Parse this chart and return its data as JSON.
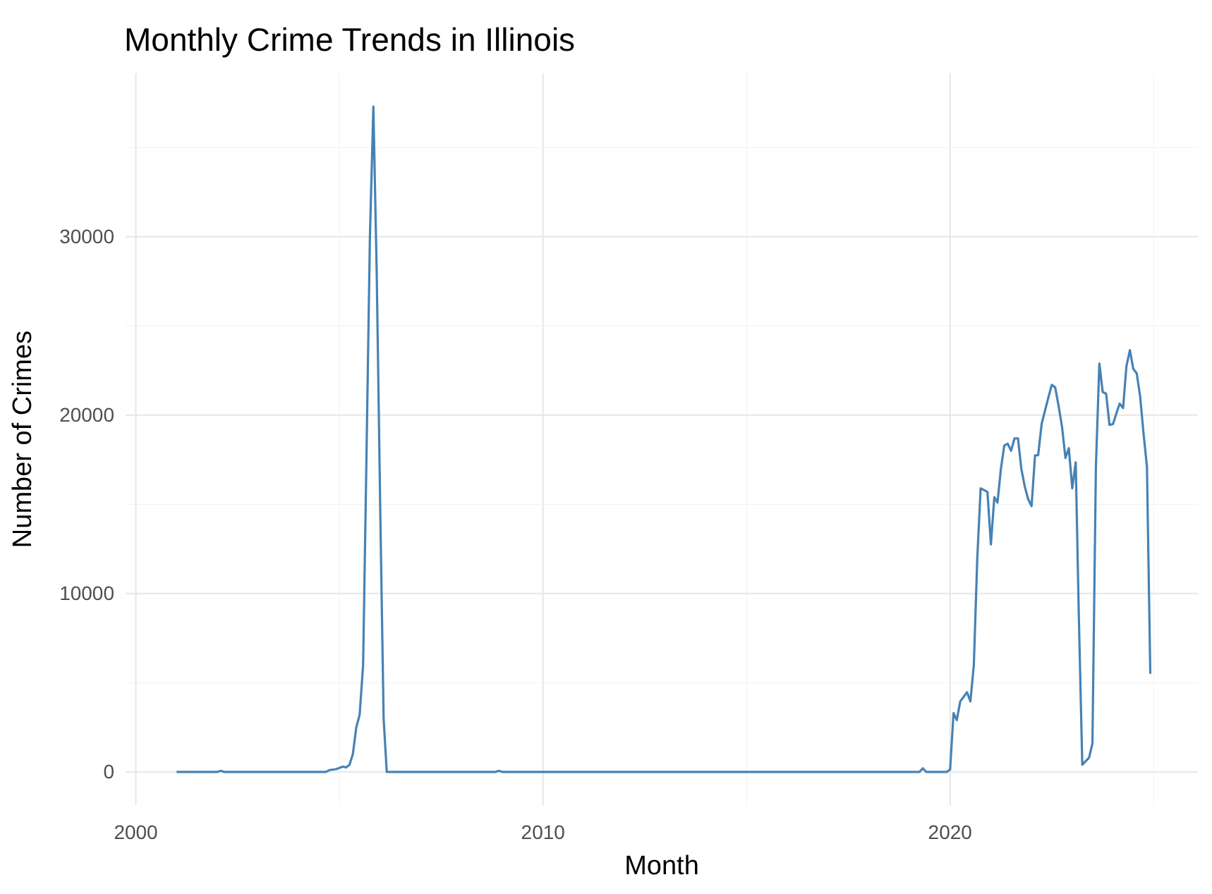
{
  "chart_data": {
    "type": "line",
    "title": "Monthly Crime Trends in Illinois",
    "xlabel": "Month",
    "ylabel": "Number of Crimes",
    "x": [
      "2001-01",
      "2002-01",
      "2002-02",
      "2002-03",
      "2004-09",
      "2004-10",
      "2004-12",
      "2005-02",
      "2005-03",
      "2005-04",
      "2005-05",
      "2005-06",
      "2005-07",
      "2005-08",
      "2005-09",
      "2005-10",
      "2005-11",
      "2005-12",
      "2006-01",
      "2006-02",
      "2006-03",
      "2008-11",
      "2008-12",
      "2009-01",
      "2019-04",
      "2019-05",
      "2019-06",
      "2019-12",
      "2020-01",
      "2020-02",
      "2020-03",
      "2020-04",
      "2020-05",
      "2020-06",
      "2020-07",
      "2020-08",
      "2020-09",
      "2020-10",
      "2020-11",
      "2020-12",
      "2021-01",
      "2021-02",
      "2021-03",
      "2021-04",
      "2021-05",
      "2021-06",
      "2021-07",
      "2021-08",
      "2021-09",
      "2021-10",
      "2021-11",
      "2021-12",
      "2022-01",
      "2022-02",
      "2022-03",
      "2022-04",
      "2022-05",
      "2022-06",
      "2022-07",
      "2022-08",
      "2022-09",
      "2022-10",
      "2022-11",
      "2022-12",
      "2023-01",
      "2023-02",
      "2023-03",
      "2023-04",
      "2023-05",
      "2023-06",
      "2023-07",
      "2023-08",
      "2023-09",
      "2023-10",
      "2023-11",
      "2023-12",
      "2024-01",
      "2024-02",
      "2024-03",
      "2024-04",
      "2024-05",
      "2024-06",
      "2024-07",
      "2024-08",
      "2024-09",
      "2024-10",
      "2024-11",
      "2024-12"
    ],
    "series": [
      {
        "color": "#4682b4",
        "values": [
          0,
          0,
          60,
          0,
          0,
          100,
          150,
          300,
          250,
          400,
          1000,
          2500,
          3200,
          6000,
          18000,
          30000,
          37300,
          28000,
          15000,
          3000,
          0,
          0,
          60,
          0,
          0,
          200,
          0,
          0,
          130,
          3300,
          2900,
          3950,
          4200,
          4470,
          3950,
          6000,
          12000,
          15900,
          15800,
          15700,
          12750,
          15400,
          15100,
          17000,
          18300,
          18400,
          18000,
          18700,
          18700,
          17000,
          16000,
          15300,
          14900,
          17750,
          17750,
          19500,
          20250,
          21000,
          21700,
          21550,
          20500,
          19350,
          17600,
          18150,
          15900,
          17350,
          8700,
          400,
          600,
          800,
          1600,
          17100,
          22900,
          21300,
          21200,
          19450,
          19500,
          20100,
          20650,
          20400,
          22750,
          23650,
          22600,
          22350,
          21050,
          19000,
          17100,
          5500
        ]
      }
    ],
    "xlim": [
      "1999-10",
      "2026-02"
    ],
    "xticks": [
      {
        "value": "2000",
        "label": "2000"
      },
      {
        "value": "2005",
        "label": null
      },
      {
        "value": "2010",
        "label": "2010"
      },
      {
        "value": "2015",
        "label": null
      },
      {
        "value": "2020",
        "label": "2020"
      },
      {
        "value": "2025",
        "label": null
      }
    ],
    "ylim": [
      -1865,
      39165
    ],
    "yticks": [
      0,
      {
        "value": 5000,
        "label": null
      },
      10000,
      {
        "value": 15000,
        "label": null
      },
      20000,
      {
        "value": 25000,
        "label": null
      },
      30000,
      {
        "value": 35000,
        "label": null
      }
    ],
    "grid": true,
    "marker": "none",
    "line_style": "solid"
  }
}
